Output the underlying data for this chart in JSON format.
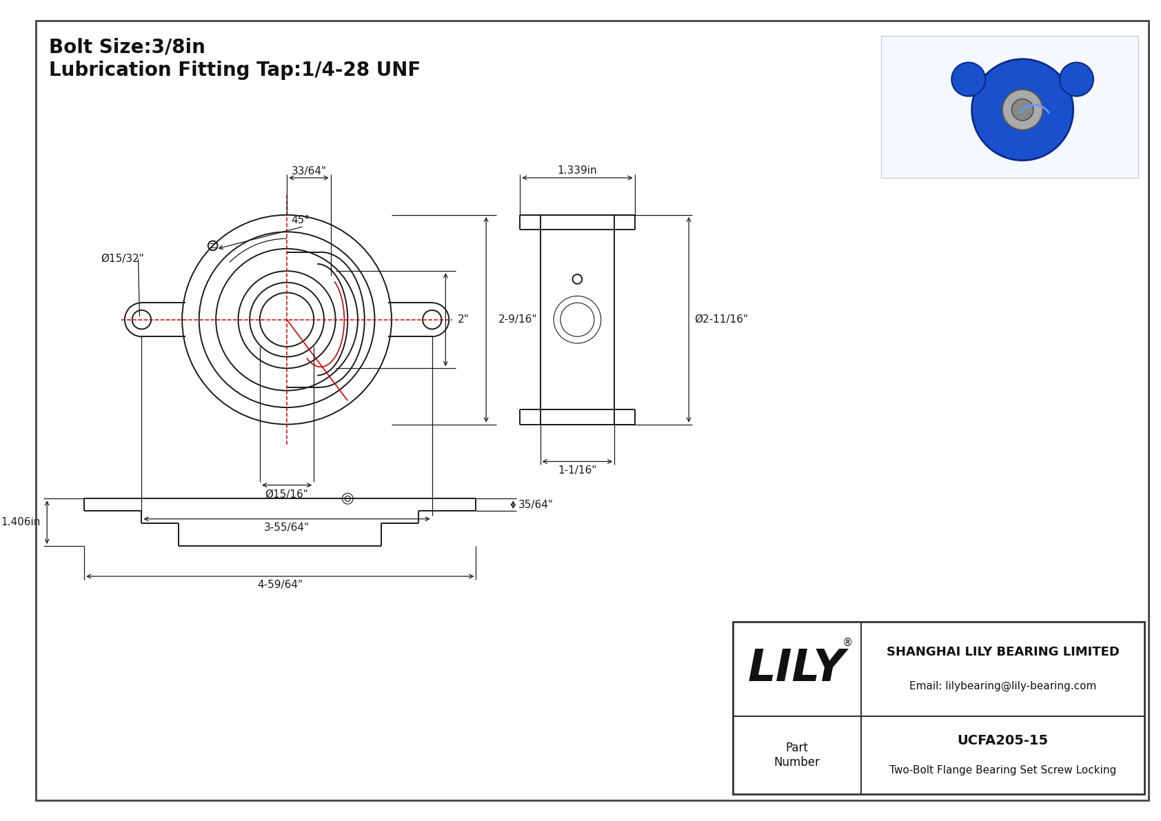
{
  "bg_color": "#ffffff",
  "line_color": "#1a1a1a",
  "dim_color": "#1a1a1a",
  "red_color": "#cc0000",
  "title_line1": "Bolt Size:3/8in",
  "title_line2": "Lubrication Fitting Tap:1/4-28 UNF",
  "company_name": "SHANGHAI LILY BEARING LIMITED",
  "company_email": "Email: lilybearing@lily-bearing.com",
  "part_number_label": "Part\nNumber",
  "part_number": "UCFA205-15",
  "part_description": "Two-Bolt Flange Bearing Set Screw Locking",
  "dims_front": {
    "bolt_hole_dia": "Ø15/32\"",
    "bore_dia": "Ø15/16\"",
    "width_33_64": "33/64\"",
    "height_2": "2\"",
    "height_2_9_16": "2-9/16\"",
    "bolt_circle_angle": "45°",
    "total_width": "3-55/64\""
  },
  "dims_side": {
    "top_width": "1.339in",
    "body_height": "Ø2-11/16\"",
    "base_width": "1-1/16\""
  },
  "dims_bottom": {
    "total_length": "4-59/64\"",
    "height_label": "1.406in",
    "top_height": "35/64\""
  }
}
